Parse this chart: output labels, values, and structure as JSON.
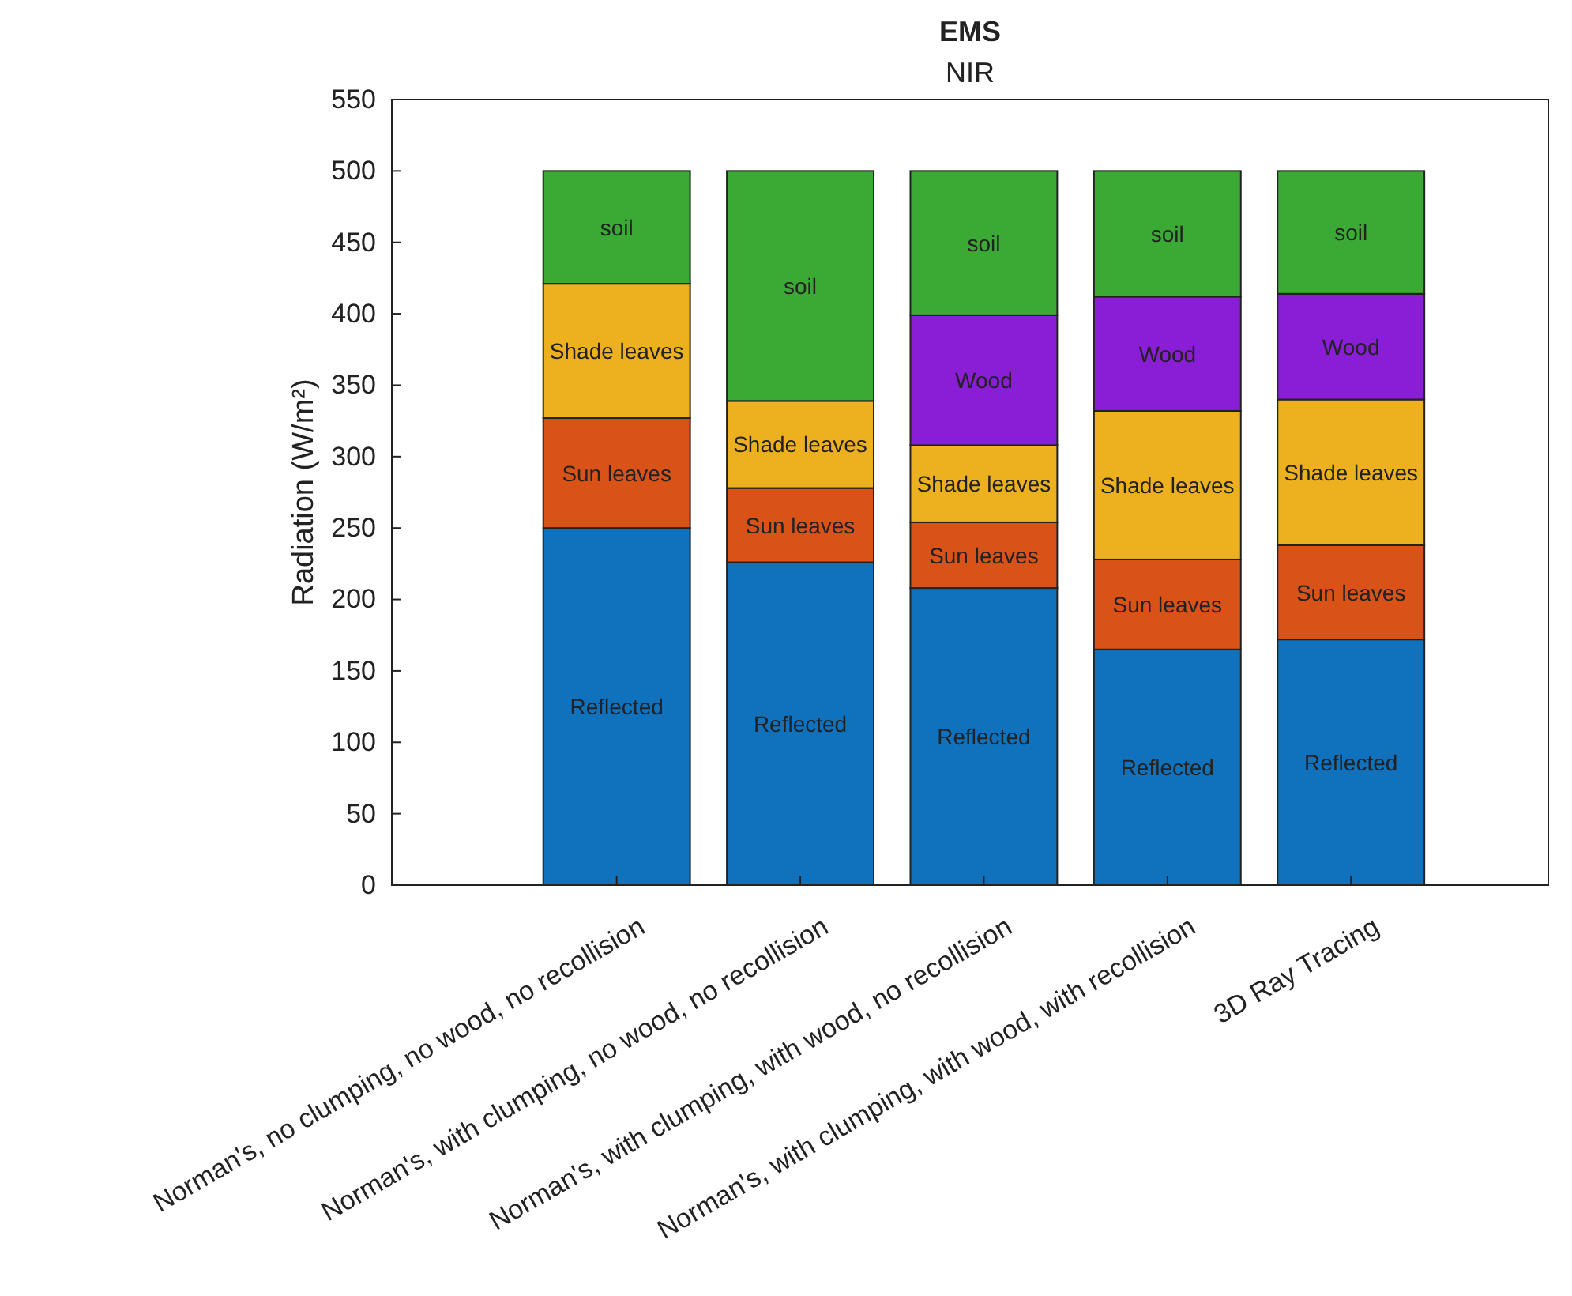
{
  "chart_data": {
    "type": "bar",
    "title": "EMS",
    "subtitle": "NIR",
    "ylabel": "Radiation (W/m²)",
    "stacked": true,
    "grid": false,
    "categories": [
      "Norman's, no clumping, no wood, no recollision",
      "Norman's, with clumping, no wood, no recollision",
      "Norman's, with clumping, with wood, no recollision",
      "Norman's, with clumping, with wood, with recollision",
      "3D Ray Tracing"
    ],
    "ylim": [
      0,
      550
    ],
    "yticks": [
      0,
      50,
      100,
      150,
      200,
      250,
      300,
      350,
      400,
      450,
      500,
      550
    ],
    "series": [
      {
        "name": "Reflected",
        "color": "#1071bd",
        "values": [
          250,
          226,
          208,
          165,
          172
        ]
      },
      {
        "name": "Sun leaves",
        "color": "#d95319",
        "values": [
          77,
          52,
          46,
          63,
          66
        ]
      },
      {
        "name": "Shade leaves",
        "color": "#edb120",
        "values": [
          94,
          61,
          54,
          104,
          102
        ]
      },
      {
        "name": "Wood",
        "color": "#8a1dd6",
        "values": [
          null,
          null,
          91,
          80,
          74
        ]
      },
      {
        "name": "soil",
        "color": "#3aaa35",
        "values": [
          79,
          161,
          101,
          88,
          86
        ]
      }
    ]
  }
}
